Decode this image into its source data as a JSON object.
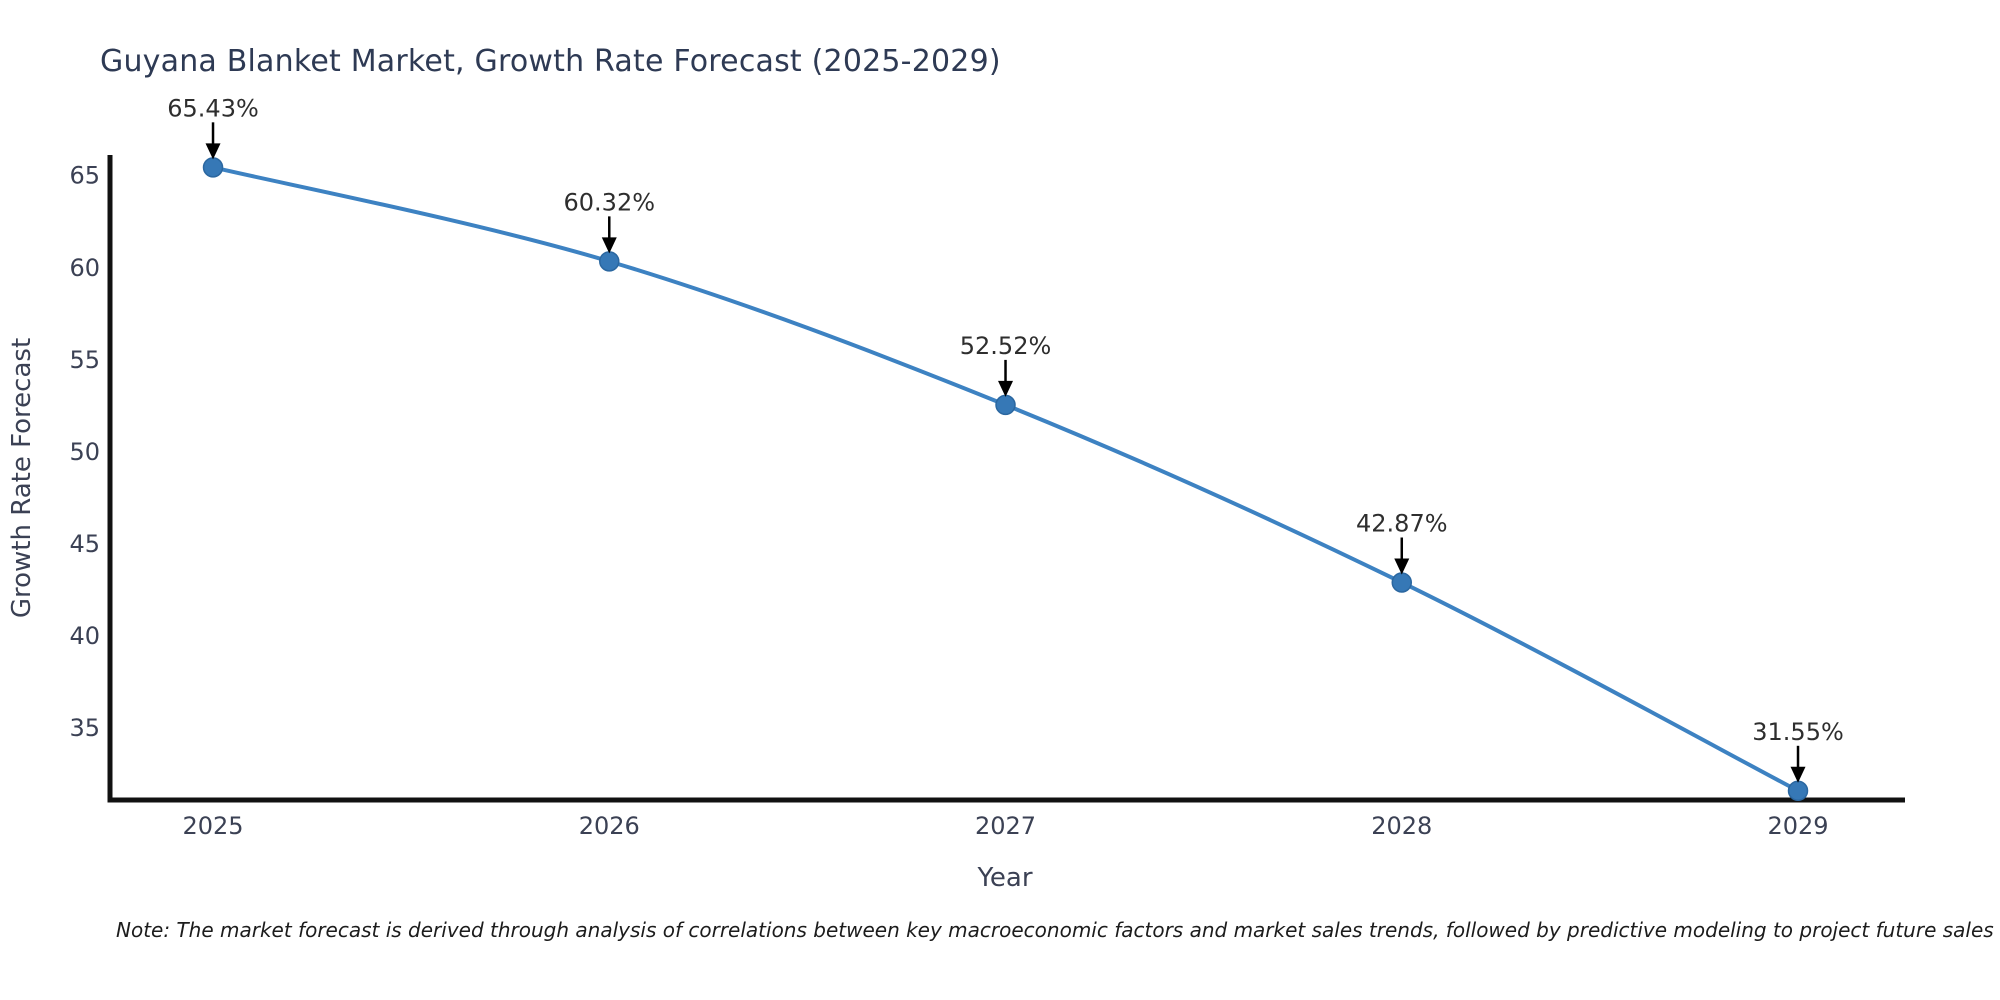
{
  "title": "Guyana Blanket Market, Growth Rate Forecast (2025-2029)",
  "note": "Note: The market forecast is derived through analysis of correlations between key macroeconomic factors and market sales trends, followed by predictive modeling to project future sales",
  "colors": {
    "background": "#ffffff",
    "line": "#3d82c2",
    "marker_fill": "#3678b6",
    "marker_edge": "#2b67a0",
    "arrow": "#000000",
    "spine": "#111111",
    "title_text": "#2e3a54",
    "tick_text": "#3b4154",
    "annotation_text": "#2e2e2e",
    "note_text": "#1c1c1c"
  },
  "chart_data": {
    "type": "line",
    "title": "Guyana Blanket Market, Growth Rate Forecast (2025-2029)",
    "xlabel": "Year",
    "ylabel": "Growth Rate Forecast",
    "x": [
      2025,
      2026,
      2027,
      2028,
      2029
    ],
    "values": [
      65.43,
      60.32,
      52.52,
      42.87,
      31.55
    ],
    "point_labels": [
      "65.43%",
      "60.32%",
      "52.52%",
      "42.87%",
      "31.55%"
    ],
    "x_tick_labels": [
      "2025",
      "2026",
      "2027",
      "2028",
      "2029"
    ],
    "y_tick_values": [
      35,
      40,
      45,
      50,
      55,
      60,
      65
    ],
    "xlim": [
      2024.74,
      2029.27
    ],
    "ylim": [
      31.05,
      66.1
    ],
    "grid": false,
    "legend_position": "none",
    "smooth": true,
    "annotations_arrow": "down"
  }
}
